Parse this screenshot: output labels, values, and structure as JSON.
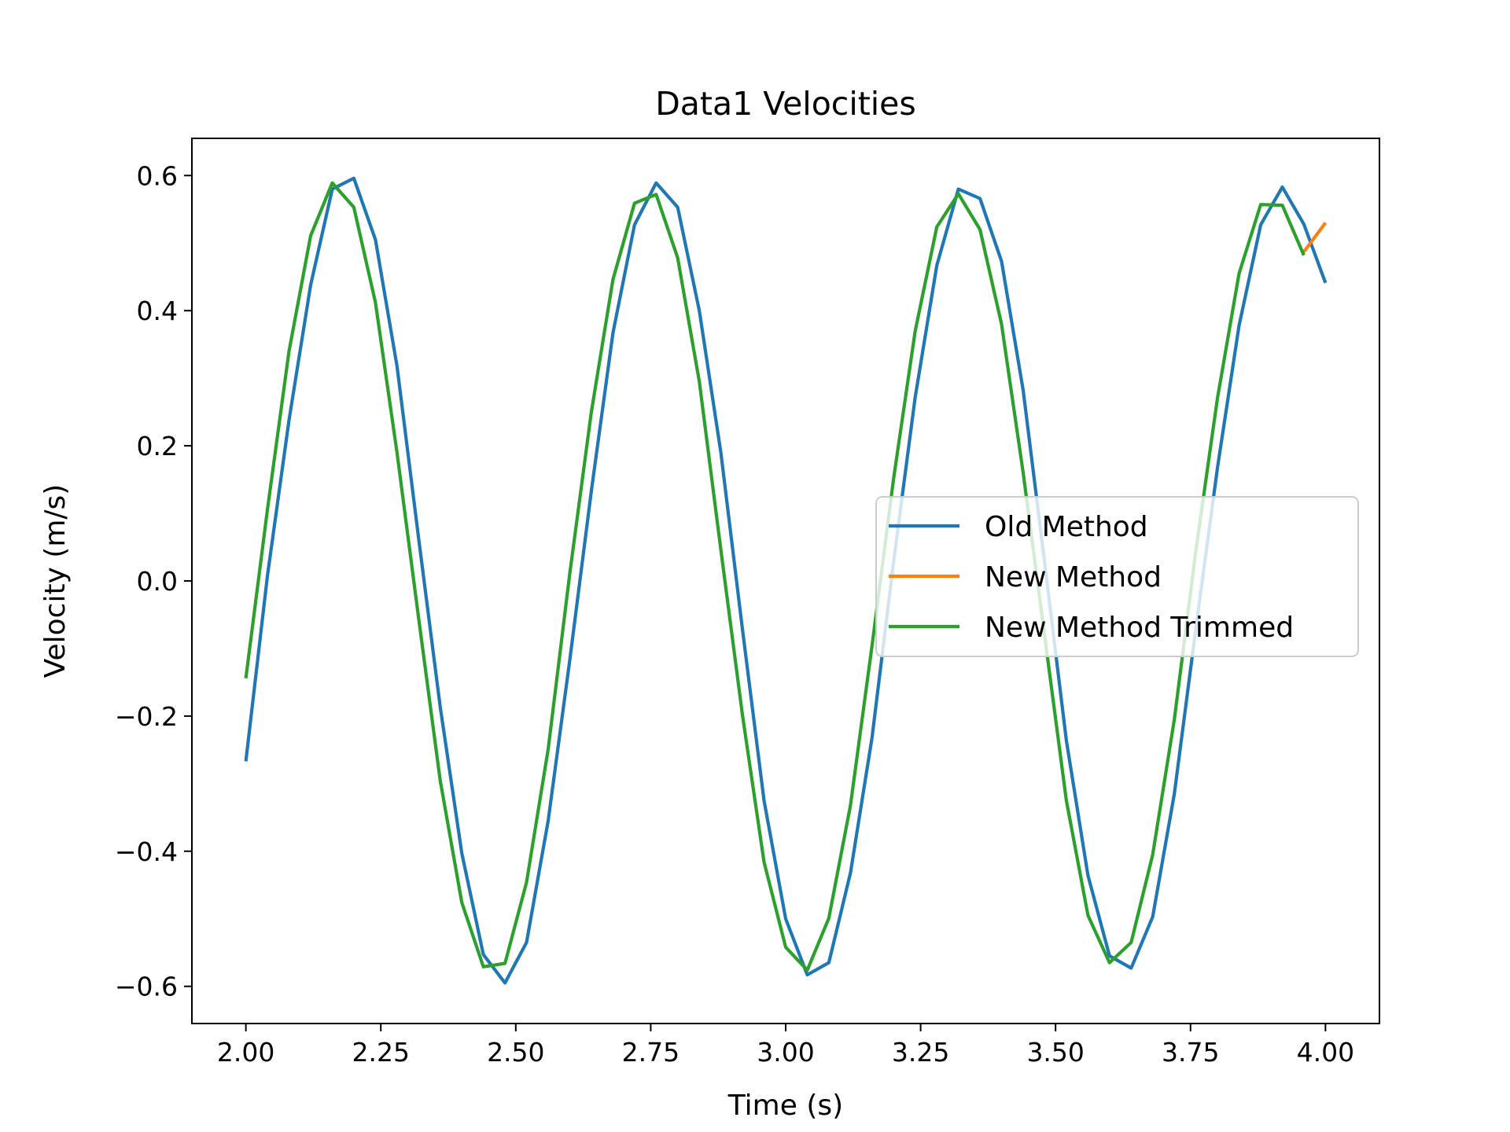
{
  "chart_data": {
    "type": "line",
    "title": "Data1 Velocities",
    "xlabel": "Time (s)",
    "ylabel": "Velocity (m/s)",
    "xlim": [
      1.9,
      4.1
    ],
    "ylim": [
      -0.655,
      0.655
    ],
    "xticks": [
      2.0,
      2.25,
      2.5,
      2.75,
      3.0,
      3.25,
      3.5,
      3.75,
      4.0
    ],
    "xtick_labels": [
      "2.00",
      "2.25",
      "2.50",
      "2.75",
      "3.00",
      "3.25",
      "3.50",
      "3.75",
      "4.00"
    ],
    "yticks": [
      -0.6,
      -0.4,
      -0.2,
      0.0,
      0.2,
      0.4,
      0.6
    ],
    "ytick_labels": [
      "−0.6",
      "−0.4",
      "−0.2",
      "0.0",
      "0.2",
      "0.4",
      "0.6"
    ],
    "grid": false,
    "legend_position": "center-right",
    "series": [
      {
        "name": "Old Method",
        "color": "#1f77b4",
        "x": [
          2.0,
          2.04,
          2.08,
          2.12,
          2.16,
          2.2,
          2.24,
          2.28,
          2.32,
          2.36,
          2.4,
          2.44,
          2.48,
          2.52,
          2.56,
          2.6,
          2.64,
          2.68,
          2.72,
          2.76,
          2.8,
          2.84,
          2.88,
          2.92,
          2.96,
          3.0,
          3.04,
          3.08,
          3.12,
          3.16,
          3.2,
          3.24,
          3.28,
          3.32,
          3.36,
          3.4,
          3.44,
          3.48,
          3.52,
          3.56,
          3.6,
          3.64,
          3.68,
          3.72,
          3.76,
          3.8,
          3.84,
          3.88,
          3.92,
          3.96,
          4.0
        ],
        "y": [
          -0.267,
          0.008,
          0.238,
          0.438,
          0.58,
          0.596,
          0.505,
          0.318,
          0.063,
          -0.186,
          -0.403,
          -0.553,
          -0.595,
          -0.535,
          -0.355,
          -0.117,
          0.133,
          0.367,
          0.527,
          0.589,
          0.553,
          0.4,
          0.19,
          -0.072,
          -0.325,
          -0.5,
          -0.583,
          -0.565,
          -0.432,
          -0.232,
          0.029,
          0.272,
          0.467,
          0.58,
          0.566,
          0.473,
          0.282,
          0.025,
          -0.236,
          -0.436,
          -0.555,
          -0.573,
          -0.497,
          -0.315,
          -0.07,
          0.168,
          0.378,
          0.527,
          0.583,
          0.528,
          0.441
        ]
      },
      {
        "name": "New Method",
        "color": "#ff7f0e",
        "x": [
          3.96,
          4.0
        ],
        "y": [
          0.487,
          0.53
        ]
      },
      {
        "name": "New Method Trimmed",
        "color": "#2ca02c",
        "x": [
          2.0,
          2.04,
          2.08,
          2.12,
          2.16,
          2.2,
          2.24,
          2.28,
          2.32,
          2.36,
          2.4,
          2.44,
          2.48,
          2.52,
          2.56,
          2.6,
          2.64,
          2.68,
          2.72,
          2.76,
          2.8,
          2.84,
          2.88,
          2.92,
          2.96,
          3.0,
          3.04,
          3.08,
          3.12,
          3.16,
          3.2,
          3.24,
          3.28,
          3.32,
          3.36,
          3.4,
          3.44,
          3.48,
          3.52,
          3.56,
          3.6,
          3.64,
          3.68,
          3.72,
          3.76,
          3.8,
          3.84,
          3.88,
          3.92,
          3.96
        ],
        "y": [
          -0.144,
          0.106,
          0.34,
          0.511,
          0.589,
          0.553,
          0.412,
          0.19,
          -0.055,
          -0.295,
          -0.476,
          -0.571,
          -0.566,
          -0.446,
          -0.249,
          0.011,
          0.25,
          0.446,
          0.559,
          0.572,
          0.478,
          0.295,
          0.046,
          -0.199,
          -0.416,
          -0.542,
          -0.576,
          -0.499,
          -0.332,
          -0.096,
          0.152,
          0.37,
          0.524,
          0.573,
          0.52,
          0.38,
          0.16,
          -0.083,
          -0.325,
          -0.495,
          -0.565,
          -0.535,
          -0.405,
          -0.205,
          0.045,
          0.271,
          0.455,
          0.557,
          0.556,
          0.482
        ]
      }
    ]
  }
}
